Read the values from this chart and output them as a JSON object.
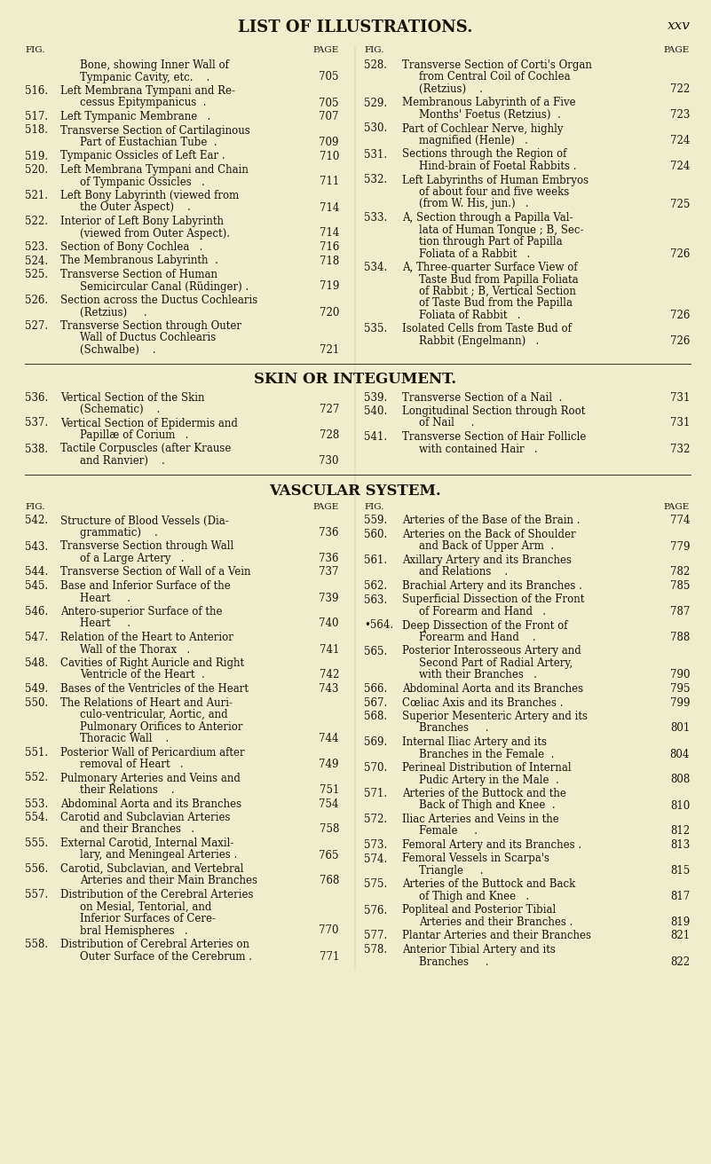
{
  "bg_color": "#f0edcc",
  "text_color": "#1a1208",
  "title": "LIST OF ILLUSTRATIONS.",
  "page_num": "xxv",
  "font_family": "serif",
  "left_col": [
    {
      "num": "",
      "text": [
        "Bone, showing Inner Wall of",
        "Tympanic Cavity, etc.    ."
      ],
      "page": "705",
      "indent": [
        1,
        2
      ]
    },
    {
      "num": "516.",
      "text": [
        "Left Membrana Tympani and Re-",
        "cessus Epitympanicus  ."
      ],
      "page": "705",
      "indent": [
        0,
        1
      ]
    },
    {
      "num": "517.",
      "text": [
        "Left Tympanic Membrane   ."
      ],
      "page": "707",
      "indent": [
        0
      ]
    },
    {
      "num": "518.",
      "text": [
        "Transverse Section of Cartilaginous",
        "Part of Eustachian Tube  ."
      ],
      "page": "709",
      "indent": [
        0,
        1
      ]
    },
    {
      "num": "519.",
      "text": [
        "Tympanic Ossicles of Left Ear ."
      ],
      "page": "710",
      "indent": [
        0
      ]
    },
    {
      "num": "520.",
      "text": [
        "Left Membrana Tympani and Chain",
        "of Tympanic Ossicles   ."
      ],
      "page": "711",
      "indent": [
        0,
        1
      ]
    },
    {
      "num": "521.",
      "text": [
        "Left Bony Labyrinth (viewed from",
        "the Outer Aspect)    ."
      ],
      "page": "714",
      "indent": [
        0,
        1
      ]
    },
    {
      "num": "522.",
      "text": [
        "Interior of Left Bony Labyrinth",
        "(viewed from Outer Aspect)."
      ],
      "page": "714",
      "indent": [
        0,
        1
      ]
    },
    {
      "num": "523.",
      "text": [
        "Section of Bony Cochlea   ."
      ],
      "page": "716",
      "indent": [
        0
      ]
    },
    {
      "num": "524.",
      "text": [
        "The Membranous Labyrinth  ."
      ],
      "page": "718",
      "indent": [
        0
      ]
    },
    {
      "num": "525.",
      "text": [
        "Transverse Section of Human",
        "Semicircular Canal (Rüdinger) ."
      ],
      "page": "719",
      "indent": [
        0,
        1
      ]
    },
    {
      "num": "526.",
      "text": [
        "Section across the Ductus Cochlearis",
        "(Retzius)     ."
      ],
      "page": "720",
      "indent": [
        0,
        1
      ]
    },
    {
      "num": "527.",
      "text": [
        "Transverse Section through Outer",
        "Wall of Ductus Cochlearis",
        "(Schwalbe)    ."
      ],
      "page": "721",
      "indent": [
        0,
        1,
        1
      ]
    }
  ],
  "right_col": [
    {
      "num": "528.",
      "text": [
        "Transverse Section of Corti's Organ",
        "from Central Coil of Cochlea",
        "(Retzius)    ."
      ],
      "page": "722",
      "indent": [
        0,
        1,
        1
      ]
    },
    {
      "num": "529.",
      "text": [
        "Membranous Labyrinth of a Five",
        "Months' Foetus (Retzius)  ."
      ],
      "page": "723",
      "indent": [
        0,
        1
      ]
    },
    {
      "num": "530.",
      "text": [
        "Part of Cochlear Nerve, highly",
        "magnified (Henle)   ."
      ],
      "page": "724",
      "indent": [
        0,
        1
      ]
    },
    {
      "num": "531.",
      "text": [
        "Sections through the Region of",
        "Hind-brain of Foetal Rabbits ."
      ],
      "page": "724",
      "indent": [
        0,
        1
      ]
    },
    {
      "num": "532.",
      "text": [
        "Left Labyrinths of Human Embryos",
        "of about four and five weeks",
        "(from W. His, jun.)   ."
      ],
      "page": "725",
      "indent": [
        0,
        1,
        1
      ]
    },
    {
      "num": "533.",
      "text": [
        "A, Section through a Papilla Val-",
        "lata of Human Tongue ; B, Sec-",
        "tion through Part of Papilla",
        "Foliata of a Rabbit   ."
      ],
      "page": "726",
      "indent": [
        0,
        1,
        1,
        1
      ]
    },
    {
      "num": "534.",
      "text": [
        "A, Three-quarter Surface View of",
        "Taste Bud from Papilla Foliata",
        "of Rabbit ; B, Vertical Section",
        "of Taste Bud from the Papilla",
        "Foliata of Rabbit   ."
      ],
      "page": "726",
      "indent": [
        0,
        1,
        1,
        1,
        1
      ]
    },
    {
      "num": "535.",
      "text": [
        "Isolated Cells from Taste Bud of",
        "Rabbit (Engelmann)   ."
      ],
      "page": "726",
      "indent": [
        0,
        1
      ]
    }
  ],
  "skin_left": [
    {
      "num": "536.",
      "text": [
        "Vertical Section of the Skin",
        "(Schematic)    ."
      ],
      "page": "727",
      "indent": [
        0,
        1
      ]
    },
    {
      "num": "537.",
      "text": [
        "Vertical Section of Epidermis and",
        "Papillæ of Corium   ."
      ],
      "page": "728",
      "indent": [
        0,
        1
      ]
    },
    {
      "num": "538.",
      "text": [
        "Tactile Corpuscles (after Krause",
        "and Ranvier)    ."
      ],
      "page": "730",
      "indent": [
        0,
        1
      ]
    }
  ],
  "skin_right": [
    {
      "num": "539.",
      "text": [
        "Transverse Section of a Nail  ."
      ],
      "page": "731",
      "indent": [
        0
      ]
    },
    {
      "num": "540.",
      "text": [
        "Longitudinal Section through Root",
        "of Nail     ."
      ],
      "page": "731",
      "indent": [
        0,
        1
      ]
    },
    {
      "num": "541.",
      "text": [
        "Transverse Section of Hair Follicle",
        "with contained Hair   ."
      ],
      "page": "732",
      "indent": [
        0,
        1
      ]
    }
  ],
  "vasc_left": [
    {
      "num": "542.",
      "text": [
        "Structure of Blood Vessels (Dia-",
        "grammatic)    ."
      ],
      "page": "736",
      "indent": [
        0,
        1
      ]
    },
    {
      "num": "543.",
      "text": [
        "Transverse Section through Wall",
        "of a Large Artery   ."
      ],
      "page": "736",
      "indent": [
        0,
        1
      ]
    },
    {
      "num": "544.",
      "text": [
        "Transverse Section of Wall of a Vein"
      ],
      "page": "737",
      "indent": [
        0
      ]
    },
    {
      "num": "545.",
      "text": [
        "Base and Inferior Surface of the",
        "Heart     ."
      ],
      "page": "739",
      "indent": [
        0,
        1
      ]
    },
    {
      "num": "546.",
      "text": [
        "Antero-superior Surface of the",
        "Heart     ."
      ],
      "page": "740",
      "indent": [
        0,
        1
      ]
    },
    {
      "num": "547.",
      "text": [
        "Relation of the Heart to Anterior",
        "Wall of the Thorax   ."
      ],
      "page": "741",
      "indent": [
        0,
        1
      ]
    },
    {
      "num": "548.",
      "text": [
        "Cavities of Right Auricle and Right",
        "Ventricle of the Heart  ."
      ],
      "page": "742",
      "indent": [
        0,
        1
      ]
    },
    {
      "num": "549.",
      "text": [
        "Bases of the Ventricles of the Heart"
      ],
      "page": "743",
      "indent": [
        0
      ]
    },
    {
      "num": "550.",
      "text": [
        "The Relations of Heart and Auri-",
        "culo-ventricular, Aortic, and",
        "Pulmonary Orifices to Anterior",
        "Thoracic Wall    ."
      ],
      "page": "744",
      "indent": [
        0,
        1,
        1,
        1
      ]
    },
    {
      "num": "551.",
      "text": [
        "Posterior Wall of Pericardium after",
        "removal of Heart   ."
      ],
      "page": "749",
      "indent": [
        0,
        1
      ]
    },
    {
      "num": "552.",
      "text": [
        "Pulmonary Arteries and Veins and",
        "their Relations    ."
      ],
      "page": "751",
      "indent": [
        0,
        1
      ]
    },
    {
      "num": "553.",
      "text": [
        "Abdominal Aorta and its Branches"
      ],
      "page": "754",
      "indent": [
        0
      ]
    },
    {
      "num": "554.",
      "text": [
        "Carotid and Subclavian Arteries",
        "and their Branches   ."
      ],
      "page": "758",
      "indent": [
        0,
        1
      ]
    },
    {
      "num": "555.",
      "text": [
        "External Carotid, Internal Maxil-",
        "lary, and Meningeal Arteries ."
      ],
      "page": "765",
      "indent": [
        0,
        1
      ]
    },
    {
      "num": "556.",
      "text": [
        "Carotid, Subclavian, and Vertebral",
        "Arteries and their Main Branches"
      ],
      "page": "768",
      "indent": [
        0,
        1
      ]
    },
    {
      "num": "557.",
      "text": [
        "Distribution of the Cerebral Arteries",
        "on Mesial, Tentorial, and",
        "Inferior Surfaces of Cere-",
        "bral Hemispheres   ."
      ],
      "page": "770",
      "indent": [
        0,
        1,
        1,
        1
      ]
    },
    {
      "num": "558.",
      "text": [
        "Distribution of Cerebral Arteries on",
        "Outer Surface of the Cerebrum ."
      ],
      "page": "771",
      "indent": [
        0,
        1
      ]
    }
  ],
  "vasc_right": [
    {
      "num": "559.",
      "text": [
        "Arteries of the Base of the Brain ."
      ],
      "page": "774",
      "indent": [
        0
      ]
    },
    {
      "num": "560.",
      "text": [
        "Arteries on the Back of Shoulder",
        "and Back of Upper Arm  ."
      ],
      "page": "779",
      "indent": [
        0,
        1
      ]
    },
    {
      "num": "561.",
      "text": [
        "Axillary Artery and its Branches",
        "and Relations    ."
      ],
      "page": "782",
      "indent": [
        0,
        1
      ]
    },
    {
      "num": "562.",
      "text": [
        "Brachial Artery and its Branches ."
      ],
      "page": "785",
      "indent": [
        0
      ]
    },
    {
      "num": "563.",
      "text": [
        "Superficial Dissection of the Front",
        "of Forearm and Hand   ."
      ],
      "page": "787",
      "indent": [
        0,
        1
      ]
    },
    {
      "num": "•564.",
      "text": [
        "Deep Dissection of the Front of",
        "Forearm and Hand    ."
      ],
      "page": "788",
      "indent": [
        0,
        1
      ]
    },
    {
      "num": "565.",
      "text": [
        "Posterior Interosseous Artery and",
        "Second Part of Radial Artery,",
        "with their Branches   ."
      ],
      "page": "790",
      "indent": [
        0,
        1,
        1
      ]
    },
    {
      "num": "566.",
      "text": [
        "Abdominal Aorta and its Branches"
      ],
      "page": "795",
      "indent": [
        0
      ]
    },
    {
      "num": "567.",
      "text": [
        "Cœliac Axis and its Branches ."
      ],
      "page": "799",
      "indent": [
        0
      ]
    },
    {
      "num": "568.",
      "text": [
        "Superior Mesenteric Artery and its",
        "Branches     ."
      ],
      "page": "801",
      "indent": [
        0,
        1
      ]
    },
    {
      "num": "569.",
      "text": [
        "Internal Iliac Artery and its",
        "Branches in the Female  ."
      ],
      "page": "804",
      "indent": [
        0,
        1
      ]
    },
    {
      "num": "570.",
      "text": [
        "Perineal Distribution of Internal",
        "Pudic Artery in the Male  ."
      ],
      "page": "808",
      "indent": [
        0,
        1
      ]
    },
    {
      "num": "571.",
      "text": [
        "Arteries of the Buttock and the",
        "Back of Thigh and Knee  ."
      ],
      "page": "810",
      "indent": [
        0,
        1
      ]
    },
    {
      "num": "572.",
      "text": [
        "Iliac Arteries and Veins in the",
        "Female     ."
      ],
      "page": "812",
      "indent": [
        0,
        1
      ]
    },
    {
      "num": "573.",
      "text": [
        "Femoral Artery and its Branches ."
      ],
      "page": "813",
      "indent": [
        0
      ]
    },
    {
      "num": "574.",
      "text": [
        "Femoral Vessels in Scarpa's",
        "Triangle     ."
      ],
      "page": "815",
      "indent": [
        0,
        1
      ]
    },
    {
      "num": "575.",
      "text": [
        "Arteries of the Buttock and Back",
        "of Thigh and Knee   ."
      ],
      "page": "817",
      "indent": [
        0,
        1
      ]
    },
    {
      "num": "576.",
      "text": [
        "Popliteal and Posterior Tibial",
        "Arteries and their Branches ."
      ],
      "page": "819",
      "indent": [
        0,
        1
      ]
    },
    {
      "num": "577.",
      "text": [
        "Plantar Arteries and their Branches"
      ],
      "page": "821",
      "indent": [
        0
      ]
    },
    {
      "num": "578.",
      "text": [
        "Anterior Tibial Artery and its",
        "Branches     ."
      ],
      "page": "822",
      "indent": [
        0,
        1
      ]
    }
  ]
}
